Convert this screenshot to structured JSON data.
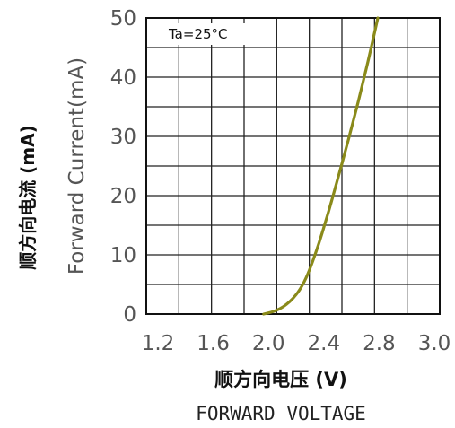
{
  "chart_data": {
    "type": "line",
    "annotation": "Ta=25°C",
    "xlabel_cn": "顺方向电压 (V)",
    "xlabel_en": "FORWARD VOLTAGE",
    "ylabel_cn": "顺方向电流 (mA)",
    "ylabel_en": "Forward Current(mA)",
    "xlim": [
      1.2,
      3.0
    ],
    "ylim": [
      0,
      50
    ],
    "x_ticks": [
      "1.2",
      "1.6",
      "2.0",
      "2.4",
      "2.8",
      "3.0"
    ],
    "x_tick_values": [
      1.2,
      1.6,
      2.0,
      2.4,
      2.8,
      3.0
    ],
    "y_ticks": [
      "0",
      "10",
      "20",
      "30",
      "40",
      "50"
    ],
    "y_tick_values": [
      0,
      10,
      20,
      30,
      40,
      50
    ],
    "grid": true,
    "series": [
      {
        "color": "#8a8a1a",
        "x": [
          1.92,
          1.98,
          2.02,
          2.06,
          2.1,
          2.14,
          2.18,
          2.22,
          2.26,
          2.3,
          2.34,
          2.38,
          2.42,
          2.46,
          2.5,
          2.54,
          2.58,
          2.62
        ],
        "y": [
          0.0,
          0.4,
          0.9,
          1.6,
          2.6,
          4.0,
          6.0,
          8.8,
          12.0,
          15.6,
          19.4,
          23.4,
          27.4,
          31.6,
          35.8,
          40.4,
          45.0,
          50.0
        ]
      }
    ]
  }
}
